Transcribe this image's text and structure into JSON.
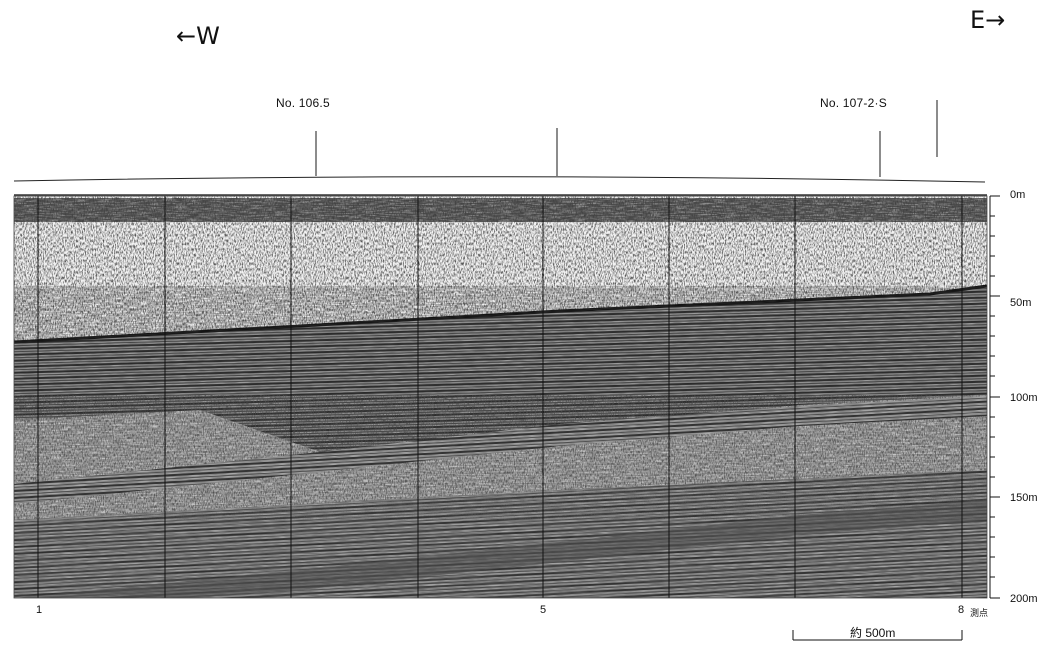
{
  "directions": {
    "west": "←W",
    "east": "E→"
  },
  "stations": [
    {
      "label": "No. 106.5"
    },
    {
      "label": ""
    },
    {
      "label": "No. 107-2·S"
    }
  ],
  "measurement_points": {
    "start": "1",
    "middle": "5",
    "end": "8",
    "unit": "測点"
  },
  "depth_axis": {
    "labels": [
      "0m",
      "50m",
      "100m",
      "150m",
      "200m"
    ]
  },
  "scale_bar": {
    "label": "約 500m"
  },
  "colors": {
    "ink": "#1a1a1a",
    "paper": "#ffffff",
    "section_base": "#6a6a6a"
  }
}
